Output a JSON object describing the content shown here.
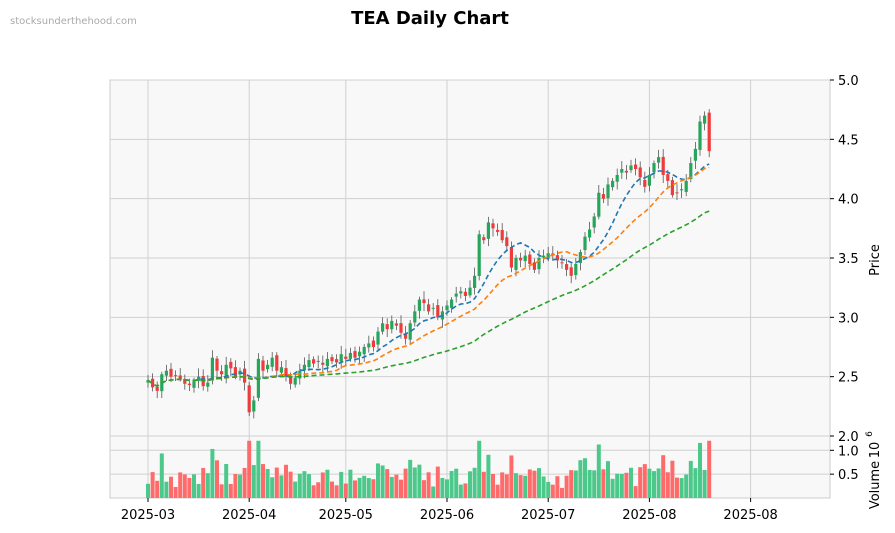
{
  "watermark": "stocksunderthehood.com",
  "chart_data": {
    "type": "candlestick",
    "title": "TEA Daily Chart",
    "ylabel": "Price",
    "volume_label": "Volume",
    "volume_exponent_label": "10",
    "volume_exponent_power": "6",
    "ylim": [
      2.0,
      5.0
    ],
    "volume_ylim": [
      0,
      1.3
    ],
    "y_ticks": [
      "2.0",
      "2.5",
      "3.0",
      "3.5",
      "4.0",
      "4.5",
      "5.0"
    ],
    "volume_ticks": [
      "0.5",
      "1.0"
    ],
    "x_tick_labels": [
      "2025-03",
      "2025-04",
      "2025-05",
      "2025-06",
      "2025-07",
      "2025-08",
      "2025-08"
    ],
    "x_tick_index": [
      0,
      22,
      43,
      65,
      87,
      109,
      131
    ],
    "grid": true,
    "colors": {
      "up": "#26a65b",
      "down": "#ef3b3b",
      "up_volume": "#4cc98a",
      "down_volume": "#ff6b6b",
      "ma_short": "#1f77b4",
      "ma_mid": "#ff7f0e",
      "ma_long": "#2ca02c",
      "panel_bg": "#f8f8f8",
      "grid": "#d0d0d0"
    },
    "moving_averages": [
      {
        "name": "MA short",
        "period": 10,
        "style": "dashed"
      },
      {
        "name": "MA mid",
        "period": 20,
        "style": "dashed"
      },
      {
        "name": "MA long",
        "period": 50,
        "style": "dashed"
      }
    ],
    "closes": [
      2.47,
      2.41,
      2.38,
      2.52,
      2.55,
      2.5,
      2.51,
      2.48,
      2.44,
      2.43,
      2.46,
      2.5,
      2.42,
      2.45,
      2.66,
      2.55,
      2.52,
      2.6,
      2.57,
      2.5,
      2.55,
      2.45,
      2.2,
      2.3,
      2.65,
      2.55,
      2.6,
      2.66,
      2.55,
      2.58,
      2.5,
      2.44,
      2.49,
      2.55,
      2.6,
      2.64,
      2.61,
      2.63,
      2.6,
      2.65,
      2.63,
      2.62,
      2.69,
      2.65,
      2.7,
      2.66,
      2.71,
      2.75,
      2.78,
      2.75,
      2.88,
      2.95,
      2.9,
      2.97,
      2.93,
      2.87,
      2.82,
      2.95,
      3.05,
      3.15,
      3.12,
      3.05,
      3.08,
      3.0,
      3.05,
      3.1,
      3.15,
      3.2,
      3.22,
      3.18,
      3.25,
      3.35,
      3.7,
      3.65,
      3.8,
      3.75,
      3.72,
      3.65,
      3.6,
      3.42,
      3.5,
      3.48,
      3.52,
      3.45,
      3.4,
      3.5,
      3.52,
      3.54,
      3.52,
      3.48,
      3.46,
      3.4,
      3.35,
      3.45,
      3.55,
      3.68,
      3.74,
      3.85,
      4.05,
      4.0,
      4.12,
      4.15,
      4.2,
      4.25,
      4.22,
      4.28,
      4.25,
      4.18,
      4.1,
      4.2,
      4.3,
      4.35,
      4.2,
      4.15,
      4.03,
      4.05,
      4.08,
      4.15,
      4.3,
      4.42,
      4.65,
      4.7,
      4.4
    ]
  }
}
